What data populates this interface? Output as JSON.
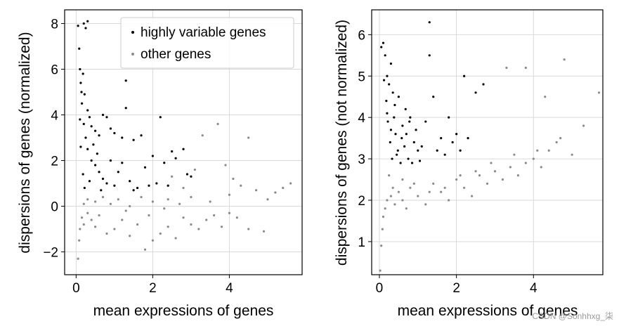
{
  "chart_data": [
    {
      "type": "scatter",
      "xlabel": "mean expressions of genes",
      "ylabel": "dispersions of genes (normalized)",
      "xlim": [
        -0.3,
        5.9
      ],
      "ylim": [
        -3.0,
        8.6
      ],
      "xticks": [
        0,
        2,
        4
      ],
      "yticks": [
        -2,
        0,
        2,
        4,
        6,
        8
      ],
      "grid": true,
      "legend_position": "top-right",
      "series": [
        {
          "name": "highly variable genes",
          "color": "#000000",
          "points": [
            [
              0.05,
              7.9
            ],
            [
              0.08,
              6.9
            ],
            [
              0.1,
              6.0
            ],
            [
              0.12,
              5.4
            ],
            [
              0.14,
              5.0
            ],
            [
              0.2,
              8.0
            ],
            [
              0.25,
              7.8
            ],
            [
              0.3,
              8.1
            ],
            [
              0.18,
              5.8
            ],
            [
              0.22,
              4.9
            ],
            [
              0.3,
              4.2
            ],
            [
              0.35,
              3.9
            ],
            [
              0.4,
              3.5
            ],
            [
              0.5,
              3.3
            ],
            [
              0.6,
              3.1
            ],
            [
              0.7,
              4.0
            ],
            [
              0.8,
              3.9
            ],
            [
              0.9,
              3.4
            ],
            [
              1.0,
              3.2
            ],
            [
              1.3,
              5.5
            ],
            [
              1.3,
              4.3
            ],
            [
              1.2,
              3.0
            ],
            [
              1.5,
              2.9
            ],
            [
              1.7,
              3.1
            ],
            [
              2.2,
              3.9
            ],
            [
              2.0,
              2.2
            ],
            [
              2.3,
              1.9
            ],
            [
              2.5,
              2.4
            ],
            [
              2.8,
              2.5
            ],
            [
              2.6,
              2.1
            ],
            [
              2.9,
              1.4
            ],
            [
              3.0,
              1.3
            ],
            [
              0.15,
              4.5
            ],
            [
              0.2,
              3.6
            ],
            [
              0.25,
              3.0
            ],
            [
              0.3,
              2.5
            ],
            [
              0.4,
              2.0
            ],
            [
              0.5,
              1.8
            ],
            [
              0.6,
              1.5
            ],
            [
              0.7,
              1.2
            ],
            [
              0.8,
              1.0
            ],
            [
              1.0,
              0.9
            ],
            [
              1.1,
              1.5
            ],
            [
              1.4,
              1.1
            ],
            [
              1.6,
              0.8
            ],
            [
              1.8,
              1.7
            ],
            [
              2.1,
              1.0
            ],
            [
              2.4,
              0.9
            ],
            [
              0.1,
              3.8
            ],
            [
              0.12,
              2.6
            ],
            [
              0.18,
              1.4
            ],
            [
              0.22,
              0.8
            ],
            [
              0.35,
              1.1
            ],
            [
              0.45,
              2.7
            ],
            [
              0.55,
              2.3
            ],
            [
              0.65,
              0.7
            ],
            [
              0.9,
              2.0
            ],
            [
              1.2,
              1.9
            ],
            [
              1.5,
              0.7
            ],
            [
              1.9,
              0.9
            ]
          ]
        },
        {
          "name": "other genes",
          "color": "#8a8a8a",
          "points": [
            [
              0.05,
              -2.3
            ],
            [
              0.08,
              -1.5
            ],
            [
              0.1,
              -1.0
            ],
            [
              0.15,
              -0.5
            ],
            [
              0.2,
              -0.8
            ],
            [
              0.3,
              -0.3
            ],
            [
              0.4,
              -0.6
            ],
            [
              0.5,
              -0.9
            ],
            [
              0.6,
              -0.4
            ],
            [
              0.8,
              -1.2
            ],
            [
              1.0,
              -1.0
            ],
            [
              1.2,
              -0.6
            ],
            [
              1.4,
              -1.3
            ],
            [
              1.6,
              -0.8
            ],
            [
              1.8,
              -1.9
            ],
            [
              2.0,
              -1.5
            ],
            [
              2.2,
              -1.2
            ],
            [
              2.4,
              -0.9
            ],
            [
              2.6,
              -1.4
            ],
            [
              2.8,
              -0.5
            ],
            [
              3.0,
              -0.8
            ],
            [
              3.2,
              -1.0
            ],
            [
              3.4,
              -0.6
            ],
            [
              3.6,
              -0.4
            ],
            [
              3.8,
              -0.9
            ],
            [
              4.0,
              -0.3
            ],
            [
              4.2,
              -0.5
            ],
            [
              4.5,
              -1.0
            ],
            [
              4.9,
              -1.1
            ],
            [
              5.2,
              0.6
            ],
            [
              5.4,
              0.8
            ],
            [
              5.6,
              1.0
            ],
            [
              4.3,
              0.9
            ],
            [
              4.5,
              3.0
            ],
            [
              3.3,
              3.1
            ],
            [
              3.7,
              3.6
            ],
            [
              4.0,
              0.5
            ],
            [
              3.5,
              0.2
            ],
            [
              3.0,
              0.4
            ],
            [
              2.7,
              0.1
            ],
            [
              2.4,
              0.3
            ],
            [
              2.0,
              0.2
            ],
            [
              1.7,
              0.4
            ],
            [
              1.4,
              0.0
            ],
            [
              1.1,
              0.3
            ],
            [
              0.9,
              0.1
            ],
            [
              0.7,
              0.4
            ],
            [
              0.5,
              0.2
            ],
            [
              0.3,
              0.3
            ],
            [
              0.2,
              0.1
            ],
            [
              4.1,
              1.2
            ],
            [
              3.9,
              1.8
            ],
            [
              2.5,
              1.3
            ],
            [
              2.8,
              0.8
            ],
            [
              3.1,
              1.6
            ],
            [
              4.7,
              0.7
            ],
            [
              5.0,
              0.3
            ],
            [
              1.3,
              -0.2
            ],
            [
              1.9,
              -0.4
            ],
            [
              2.3,
              -0.1
            ]
          ]
        }
      ]
    },
    {
      "type": "scatter",
      "xlabel": "mean expressions of genes",
      "ylabel": "dispersions of genes (not normalized)",
      "xlim": [
        -0.2,
        5.8
      ],
      "ylim": [
        0.2,
        6.6
      ],
      "xticks": [
        0,
        2,
        4
      ],
      "yticks": [
        1,
        2,
        3,
        4,
        5,
        6
      ],
      "grid": true,
      "series": [
        {
          "name": "highly variable genes",
          "color": "#000000",
          "points": [
            [
              0.05,
              5.7
            ],
            [
              0.1,
              5.8
            ],
            [
              0.15,
              5.5
            ],
            [
              0.2,
              5.0
            ],
            [
              0.25,
              4.8
            ],
            [
              0.3,
              5.3
            ],
            [
              0.35,
              4.6
            ],
            [
              0.4,
              4.3
            ],
            [
              0.5,
              4.5
            ],
            [
              0.6,
              3.8
            ],
            [
              0.7,
              3.6
            ],
            [
              0.8,
              4.0
            ],
            [
              0.9,
              3.4
            ],
            [
              1.0,
              3.2
            ],
            [
              1.3,
              6.3
            ],
            [
              1.3,
              5.5
            ],
            [
              1.4,
              4.5
            ],
            [
              1.6,
              3.5
            ],
            [
              1.8,
              4.0
            ],
            [
              2.0,
              3.6
            ],
            [
              2.2,
              5.0
            ],
            [
              2.3,
              3.5
            ],
            [
              2.5,
              4.6
            ],
            [
              2.7,
              4.8
            ],
            [
              1.5,
              3.2
            ],
            [
              1.2,
              3.9
            ],
            [
              1.1,
              3.3
            ],
            [
              0.2,
              4.1
            ],
            [
              0.3,
              3.7
            ],
            [
              0.45,
              3.1
            ],
            [
              0.55,
              2.9
            ],
            [
              0.65,
              3.3
            ],
            [
              0.75,
              3.0
            ],
            [
              0.85,
              2.9
            ],
            [
              0.95,
              3.7
            ],
            [
              1.05,
              2.95
            ],
            [
              1.7,
              3.1
            ],
            [
              1.9,
              3.4
            ],
            [
              2.1,
              3.2
            ],
            [
              0.12,
              4.9
            ],
            [
              0.18,
              4.4
            ],
            [
              0.22,
              3.9
            ],
            [
              0.28,
              3.4
            ],
            [
              0.33,
              3.0
            ],
            [
              0.38,
              4.0
            ],
            [
              0.42,
              3.6
            ],
            [
              0.48,
              3.2
            ],
            [
              0.58,
              3.5
            ],
            [
              0.68,
              4.2
            ],
            [
              0.78,
              3.9
            ]
          ]
        },
        {
          "name": "other genes",
          "color": "#8a8a8a",
          "points": [
            [
              0.02,
              0.3
            ],
            [
              0.05,
              0.9
            ],
            [
              0.08,
              1.3
            ],
            [
              0.1,
              1.6
            ],
            [
              0.15,
              1.8
            ],
            [
              0.2,
              2.0
            ],
            [
              0.3,
              2.1
            ],
            [
              0.4,
              1.9
            ],
            [
              0.5,
              2.2
            ],
            [
              0.6,
              2.0
            ],
            [
              0.7,
              1.8
            ],
            [
              0.8,
              2.3
            ],
            [
              1.0,
              2.1
            ],
            [
              1.2,
              1.9
            ],
            [
              1.4,
              2.4
            ],
            [
              1.6,
              2.2
            ],
            [
              1.8,
              2.0
            ],
            [
              2.0,
              2.5
            ],
            [
              2.2,
              2.3
            ],
            [
              2.4,
              2.1
            ],
            [
              2.6,
              2.6
            ],
            [
              2.8,
              2.4
            ],
            [
              3.0,
              2.7
            ],
            [
              3.2,
              2.5
            ],
            [
              3.4,
              2.8
            ],
            [
              3.6,
              2.6
            ],
            [
              3.8,
              2.9
            ],
            [
              4.0,
              3.0
            ],
            [
              4.2,
              2.8
            ],
            [
              4.4,
              3.2
            ],
            [
              4.6,
              3.4
            ],
            [
              4.8,
              5.4
            ],
            [
              4.7,
              3.5
            ],
            [
              5.0,
              3.1
            ],
            [
              5.3,
              3.8
            ],
            [
              5.7,
              4.6
            ],
            [
              4.3,
              4.5
            ],
            [
              3.8,
              5.2
            ],
            [
              3.3,
              5.2
            ],
            [
              4.1,
              3.2
            ],
            [
              3.5,
              3.1
            ],
            [
              2.9,
              2.9
            ],
            [
              2.5,
              2.7
            ],
            [
              2.1,
              2.6
            ],
            [
              1.7,
              2.3
            ],
            [
              1.3,
              2.2
            ],
            [
              0.9,
              2.4
            ],
            [
              0.6,
              2.5
            ],
            [
              0.35,
              2.3
            ],
            [
              0.25,
              2.6
            ]
          ]
        }
      ]
    }
  ],
  "watermark": "CSDN @Sonhhxg_柒"
}
